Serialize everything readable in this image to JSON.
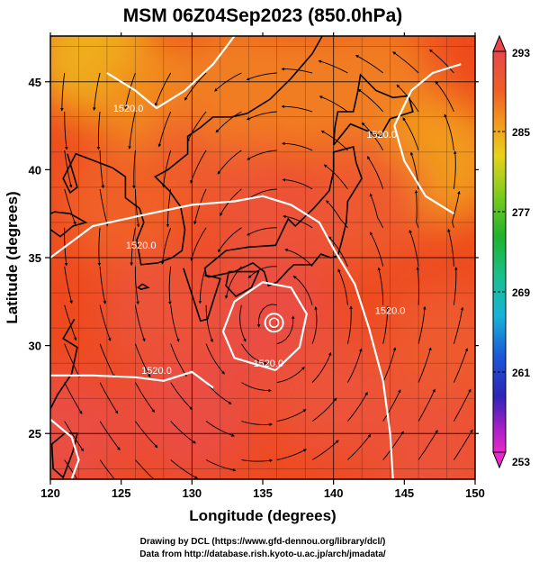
{
  "chart_data": {
    "type": "heatmap",
    "title": "MSM 06Z04Sep2023 (850.0hPa)",
    "xlabel": "Longitude (degrees)",
    "ylabel": "Latitude (degrees)",
    "xlim": [
      120,
      150
    ],
    "ylim": [
      22.4,
      47.6
    ],
    "x_ticks": [
      "120",
      "125",
      "130",
      "135",
      "140",
      "145",
      "150"
    ],
    "y_ticks": [
      "25",
      "30",
      "35",
      "40",
      "45"
    ],
    "grid": true,
    "colorbar": {
      "range": [
        253,
        293
      ],
      "ticks": [
        "293",
        "285",
        "277",
        "269",
        "261",
        "253"
      ]
    },
    "contours": [
      {
        "label": "1520.0",
        "lon": 125.5,
        "lat": 43.3
      },
      {
        "label": "1520.0",
        "lon": 143.4,
        "lat": 41.8
      },
      {
        "label": "1520.0",
        "lon": 126.4,
        "lat": 35.5
      },
      {
        "label": "1520.0",
        "lon": 144.0,
        "lat": 31.8
      },
      {
        "label": "1520.0",
        "lon": 135.4,
        "lat": 28.8
      },
      {
        "label": "1520.0",
        "lon": 127.5,
        "lat": 28.4
      }
    ],
    "typhoon_center": {
      "lon": 135.8,
      "lat": 31.3
    },
    "temperature_field": {
      "units": "K",
      "values": [
        {
          "lon": 123,
          "lat": 46.5,
          "value": 284
        },
        {
          "lon": 128,
          "lat": 43.5,
          "value": 286
        },
        {
          "lon": 131.5,
          "lat": 41,
          "value": 290
        },
        {
          "lon": 133,
          "lat": 45,
          "value": 287
        },
        {
          "lon": 138,
          "lat": 44.5,
          "value": 287
        },
        {
          "lon": 143,
          "lat": 45,
          "value": 287
        },
        {
          "lon": 147.5,
          "lat": 40.5,
          "value": 285
        },
        {
          "lon": 142,
          "lat": 38,
          "value": 290
        },
        {
          "lon": 136,
          "lat": 36.5,
          "value": 291
        },
        {
          "lon": 125,
          "lat": 38,
          "value": 289
        },
        {
          "lon": 128,
          "lat": 32,
          "value": 291
        },
        {
          "lon": 135.8,
          "lat": 31.3,
          "value": 292
        },
        {
          "lon": 130,
          "lat": 26,
          "value": 292
        },
        {
          "lon": 121,
          "lat": 25,
          "value": 292
        },
        {
          "lon": 140,
          "lat": 27,
          "value": 291
        },
        {
          "lon": 148,
          "lat": 30,
          "value": 290
        },
        {
          "lon": 147,
          "lat": 24,
          "value": 291
        }
      ]
    }
  },
  "footer": {
    "line1": "Drawing by DCL (https://www.gfd-dennou.org/library/dcl/)",
    "line2": "Data from http://database.rish.kyoto-u.ac.jp/arch/jmadata/"
  },
  "colors": {
    "frame": "#000000",
    "contour": "#ffffff",
    "streamline": "#000000"
  }
}
